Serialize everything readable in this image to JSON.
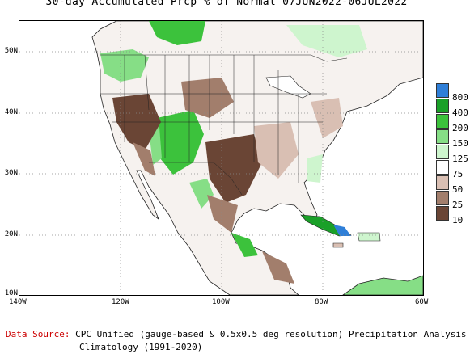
{
  "title": "30-day Accumulated Prcp % of Normal 07JUN2022-06JUL2022",
  "map": {
    "lat_labels": [
      "50N",
      "40N",
      "30N",
      "20N",
      "10N"
    ],
    "lon_labels": [
      "140W",
      "120W",
      "100W",
      "80W",
      "60W"
    ]
  },
  "legend": [
    {
      "label": "800",
      "color": "#2f7fd8"
    },
    {
      "label": "400",
      "color": "#1aa028"
    },
    {
      "label": "200",
      "color": "#3cc23c"
    },
    {
      "label": "150",
      "color": "#86de86"
    },
    {
      "label": "125",
      "color": "#cef5ce"
    },
    {
      "label": "75",
      "color": "#ffffff"
    },
    {
      "label": "50",
      "color": "#d9bfb3"
    },
    {
      "label": "25",
      "color": "#a27e6c"
    },
    {
      "label": "10",
      "color": "#6a4535"
    }
  ],
  "footer": {
    "source_label": "Data Source:",
    "source_text": "CPC Unified (gauge-based & 0.5x0.5 deg resolution) Precipitation Analysis",
    "climatology": "Climatology (1991-2020)"
  }
}
